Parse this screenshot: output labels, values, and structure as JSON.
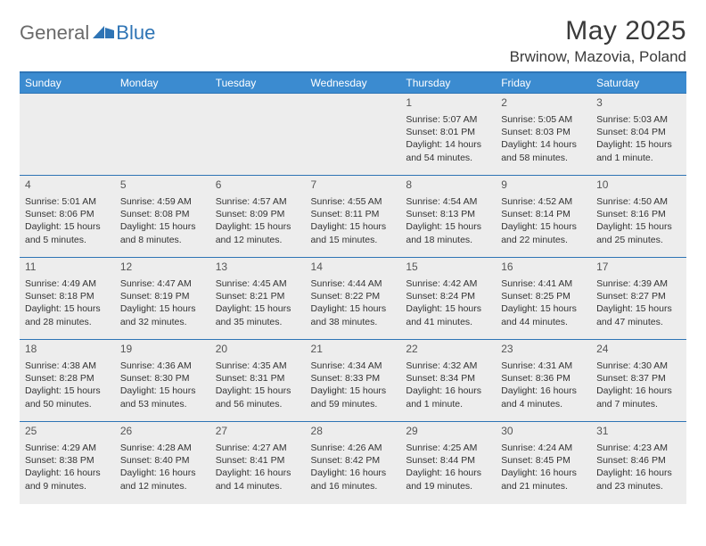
{
  "logo": {
    "general": "General",
    "blue": "Blue"
  },
  "title": "May 2025",
  "location": "Brwinow, Mazovia, Poland",
  "colors": {
    "header_bg": "#3b8bd0",
    "accent": "#2e74b5",
    "daynum_bg": "#ededed",
    "text": "#333333"
  },
  "weekdays": [
    "Sunday",
    "Monday",
    "Tuesday",
    "Wednesday",
    "Thursday",
    "Friday",
    "Saturday"
  ],
  "weeks": [
    [
      null,
      null,
      null,
      null,
      {
        "n": "1",
        "sr": "5:07 AM",
        "ss": "8:01 PM",
        "dl": "14 hours and 54 minutes."
      },
      {
        "n": "2",
        "sr": "5:05 AM",
        "ss": "8:03 PM",
        "dl": "14 hours and 58 minutes."
      },
      {
        "n": "3",
        "sr": "5:03 AM",
        "ss": "8:04 PM",
        "dl": "15 hours and 1 minute."
      }
    ],
    [
      {
        "n": "4",
        "sr": "5:01 AM",
        "ss": "8:06 PM",
        "dl": "15 hours and 5 minutes."
      },
      {
        "n": "5",
        "sr": "4:59 AM",
        "ss": "8:08 PM",
        "dl": "15 hours and 8 minutes."
      },
      {
        "n": "6",
        "sr": "4:57 AM",
        "ss": "8:09 PM",
        "dl": "15 hours and 12 minutes."
      },
      {
        "n": "7",
        "sr": "4:55 AM",
        "ss": "8:11 PM",
        "dl": "15 hours and 15 minutes."
      },
      {
        "n": "8",
        "sr": "4:54 AM",
        "ss": "8:13 PM",
        "dl": "15 hours and 18 minutes."
      },
      {
        "n": "9",
        "sr": "4:52 AM",
        "ss": "8:14 PM",
        "dl": "15 hours and 22 minutes."
      },
      {
        "n": "10",
        "sr": "4:50 AM",
        "ss": "8:16 PM",
        "dl": "15 hours and 25 minutes."
      }
    ],
    [
      {
        "n": "11",
        "sr": "4:49 AM",
        "ss": "8:18 PM",
        "dl": "15 hours and 28 minutes."
      },
      {
        "n": "12",
        "sr": "4:47 AM",
        "ss": "8:19 PM",
        "dl": "15 hours and 32 minutes."
      },
      {
        "n": "13",
        "sr": "4:45 AM",
        "ss": "8:21 PM",
        "dl": "15 hours and 35 minutes."
      },
      {
        "n": "14",
        "sr": "4:44 AM",
        "ss": "8:22 PM",
        "dl": "15 hours and 38 minutes."
      },
      {
        "n": "15",
        "sr": "4:42 AM",
        "ss": "8:24 PM",
        "dl": "15 hours and 41 minutes."
      },
      {
        "n": "16",
        "sr": "4:41 AM",
        "ss": "8:25 PM",
        "dl": "15 hours and 44 minutes."
      },
      {
        "n": "17",
        "sr": "4:39 AM",
        "ss": "8:27 PM",
        "dl": "15 hours and 47 minutes."
      }
    ],
    [
      {
        "n": "18",
        "sr": "4:38 AM",
        "ss": "8:28 PM",
        "dl": "15 hours and 50 minutes."
      },
      {
        "n": "19",
        "sr": "4:36 AM",
        "ss": "8:30 PM",
        "dl": "15 hours and 53 minutes."
      },
      {
        "n": "20",
        "sr": "4:35 AM",
        "ss": "8:31 PM",
        "dl": "15 hours and 56 minutes."
      },
      {
        "n": "21",
        "sr": "4:34 AM",
        "ss": "8:33 PM",
        "dl": "15 hours and 59 minutes."
      },
      {
        "n": "22",
        "sr": "4:32 AM",
        "ss": "8:34 PM",
        "dl": "16 hours and 1 minute."
      },
      {
        "n": "23",
        "sr": "4:31 AM",
        "ss": "8:36 PM",
        "dl": "16 hours and 4 minutes."
      },
      {
        "n": "24",
        "sr": "4:30 AM",
        "ss": "8:37 PM",
        "dl": "16 hours and 7 minutes."
      }
    ],
    [
      {
        "n": "25",
        "sr": "4:29 AM",
        "ss": "8:38 PM",
        "dl": "16 hours and 9 minutes."
      },
      {
        "n": "26",
        "sr": "4:28 AM",
        "ss": "8:40 PM",
        "dl": "16 hours and 12 minutes."
      },
      {
        "n": "27",
        "sr": "4:27 AM",
        "ss": "8:41 PM",
        "dl": "16 hours and 14 minutes."
      },
      {
        "n": "28",
        "sr": "4:26 AM",
        "ss": "8:42 PM",
        "dl": "16 hours and 16 minutes."
      },
      {
        "n": "29",
        "sr": "4:25 AM",
        "ss": "8:44 PM",
        "dl": "16 hours and 19 minutes."
      },
      {
        "n": "30",
        "sr": "4:24 AM",
        "ss": "8:45 PM",
        "dl": "16 hours and 21 minutes."
      },
      {
        "n": "31",
        "sr": "4:23 AM",
        "ss": "8:46 PM",
        "dl": "16 hours and 23 minutes."
      }
    ]
  ],
  "labels": {
    "sunrise": "Sunrise: ",
    "sunset": "Sunset: ",
    "daylight": "Daylight: "
  }
}
